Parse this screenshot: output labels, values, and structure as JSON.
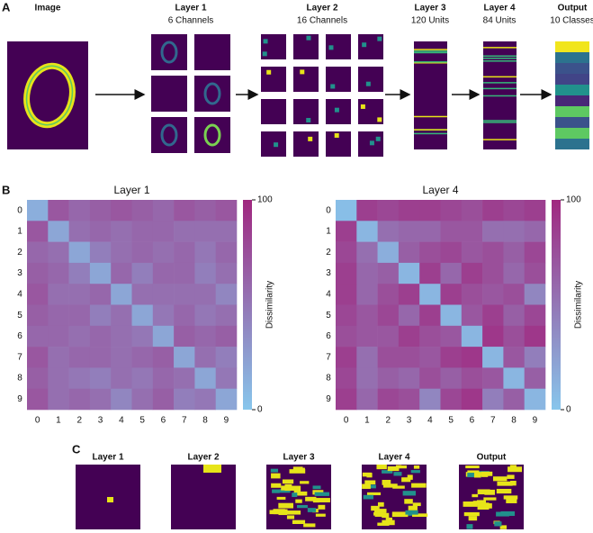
{
  "panel_a": {
    "label": "A",
    "stages": [
      {
        "title": "Image"
      },
      {
        "title": "Layer 1",
        "subtitle": "6 Channels"
      },
      {
        "title": "Layer 2",
        "subtitle": "16 Channels"
      },
      {
        "title": "Layer 3",
        "subtitle": "120 Units"
      },
      {
        "title": "Layer 4",
        "subtitle": "84 Units"
      },
      {
        "title": "Output",
        "subtitle": "10 Classes"
      }
    ]
  },
  "panel_b": {
    "label": "B",
    "charts": [
      {
        "type": "heatmap",
        "title": "Layer 1",
        "categories": [
          "0",
          "1",
          "2",
          "3",
          "4",
          "5",
          "6",
          "7",
          "8",
          "9"
        ],
        "values": [
          [
            15,
            70,
            60,
            65,
            70,
            65,
            60,
            70,
            65,
            70
          ],
          [
            70,
            20,
            55,
            60,
            55,
            60,
            60,
            55,
            55,
            55
          ],
          [
            60,
            55,
            20,
            45,
            55,
            60,
            55,
            60,
            50,
            60
          ],
          [
            65,
            60,
            45,
            20,
            60,
            45,
            60,
            60,
            45,
            55
          ],
          [
            70,
            55,
            55,
            60,
            20,
            55,
            55,
            55,
            55,
            40
          ],
          [
            65,
            60,
            60,
            45,
            55,
            20,
            50,
            60,
            50,
            55
          ],
          [
            60,
            60,
            55,
            60,
            55,
            50,
            20,
            65,
            60,
            65
          ],
          [
            70,
            55,
            60,
            60,
            55,
            60,
            65,
            20,
            55,
            45
          ],
          [
            65,
            55,
            50,
            45,
            55,
            50,
            60,
            55,
            20,
            50
          ],
          [
            70,
            55,
            60,
            55,
            40,
            55,
            65,
            45,
            50,
            20
          ]
        ],
        "colorbar_label": "Dissimilarity",
        "clim": [
          0,
          100
        ],
        "cticks": [
          0,
          100
        ],
        "colors": [
          "#87c6ec",
          "#a0277f"
        ]
      },
      {
        "type": "heatmap",
        "title": "Layer 4",
        "categories": [
          "0",
          "1",
          "2",
          "3",
          "4",
          "5",
          "6",
          "7",
          "8",
          "9"
        ],
        "values": [
          [
            5,
            85,
            80,
            85,
            85,
            80,
            75,
            85,
            80,
            85
          ],
          [
            85,
            10,
            55,
            60,
            60,
            70,
            70,
            55,
            55,
            60
          ],
          [
            80,
            55,
            15,
            65,
            75,
            80,
            70,
            75,
            65,
            80
          ],
          [
            85,
            60,
            65,
            10,
            85,
            60,
            85,
            75,
            60,
            75
          ],
          [
            85,
            60,
            75,
            85,
            10,
            85,
            75,
            70,
            75,
            40
          ],
          [
            80,
            70,
            80,
            60,
            85,
            10,
            70,
            85,
            65,
            80
          ],
          [
            75,
            70,
            70,
            85,
            75,
            70,
            10,
            90,
            75,
            90
          ],
          [
            85,
            55,
            75,
            75,
            70,
            85,
            90,
            10,
            70,
            45
          ],
          [
            80,
            55,
            65,
            60,
            75,
            65,
            75,
            70,
            10,
            65
          ],
          [
            85,
            60,
            80,
            75,
            40,
            80,
            90,
            45,
            65,
            10
          ]
        ],
        "colorbar_label": "Dissimilarity",
        "clim": [
          0,
          100
        ],
        "cticks": [
          0,
          100
        ],
        "colors": [
          "#87c6ec",
          "#a0277f"
        ]
      }
    ]
  },
  "panel_c": {
    "label": "C",
    "panels": [
      "Layer 1",
      "Layer 2",
      "Layer 3",
      "Layer 4",
      "Output"
    ]
  }
}
